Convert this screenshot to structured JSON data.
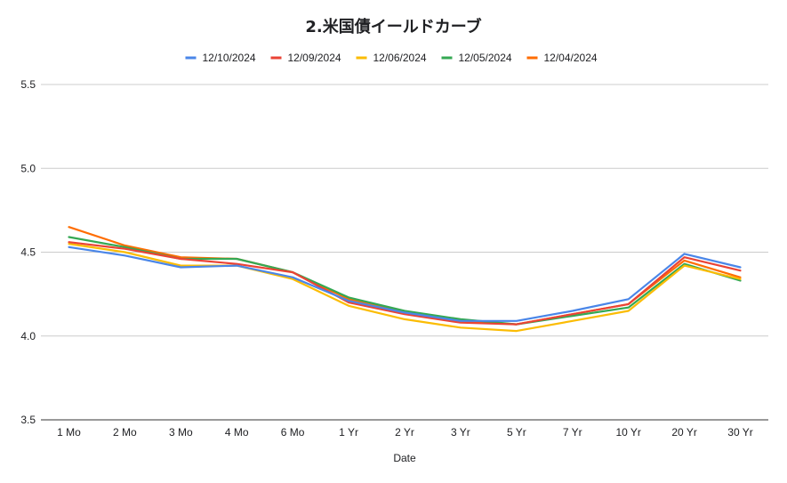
{
  "chart_data": {
    "type": "line",
    "title": "2.米国債イールドカーブ",
    "xlabel": "Date",
    "ylabel": "",
    "ylim": [
      3.5,
      5.5
    ],
    "yticks": [
      "3.5",
      "4.0",
      "4.5",
      "5.0",
      "5.5"
    ],
    "grid": true,
    "legend_position": "top",
    "categories": [
      "1 Mo",
      "2 Mo",
      "3 Mo",
      "4 Mo",
      "6 Mo",
      "1 Yr",
      "2 Yr",
      "3 Yr",
      "5 Yr",
      "7 Yr",
      "10 Yr",
      "20 Yr",
      "30 Yr"
    ],
    "series": [
      {
        "name": "12/10/2024",
        "color": "#4a86e8",
        "values": [
          4.53,
          4.48,
          4.41,
          4.42,
          4.35,
          4.21,
          4.14,
          4.09,
          4.09,
          4.15,
          4.22,
          4.49,
          4.41
        ]
      },
      {
        "name": "12/09/2024",
        "color": "#ea4335",
        "values": [
          4.56,
          4.52,
          4.46,
          4.43,
          4.38,
          4.2,
          4.13,
          4.08,
          4.07,
          4.13,
          4.19,
          4.47,
          4.39
        ]
      },
      {
        "name": "12/06/2024",
        "color": "#fbbc04",
        "values": [
          4.55,
          4.5,
          4.42,
          4.42,
          4.34,
          4.18,
          4.1,
          4.05,
          4.03,
          4.09,
          4.15,
          4.42,
          4.34
        ]
      },
      {
        "name": "12/05/2024",
        "color": "#34a853",
        "values": [
          4.59,
          4.53,
          4.46,
          4.46,
          4.38,
          4.23,
          4.15,
          4.1,
          4.07,
          4.12,
          4.17,
          4.43,
          4.33
        ]
      },
      {
        "name": "12/04/2024",
        "color": "#ff6d01",
        "values": [
          4.65,
          4.54,
          4.47,
          4.46,
          4.38,
          4.22,
          4.14,
          4.09,
          4.07,
          4.13,
          4.19,
          4.45,
          4.35
        ]
      }
    ]
  }
}
